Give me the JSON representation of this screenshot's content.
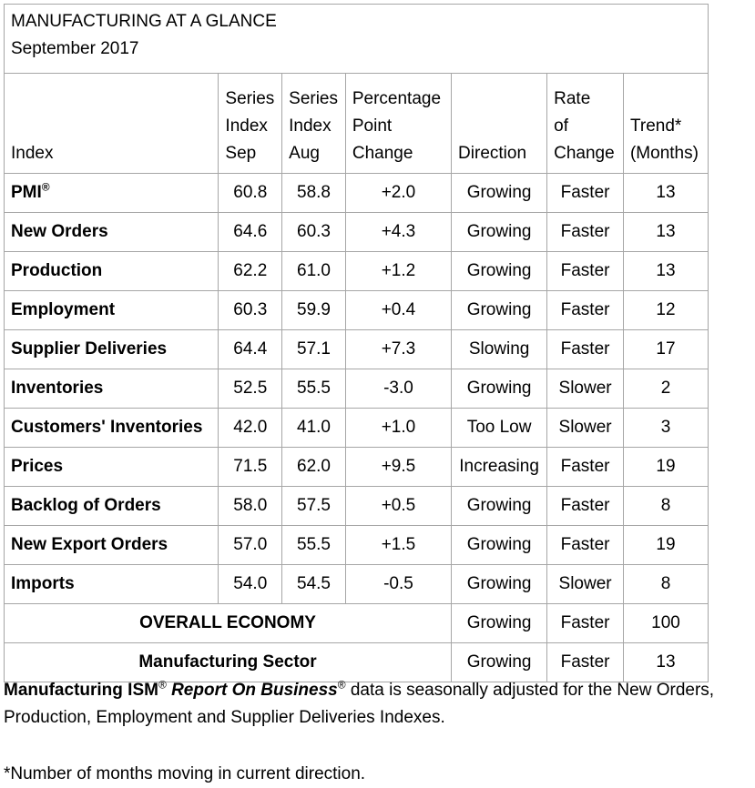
{
  "title": {
    "line1": "MANUFACTURING AT A GLANCE",
    "line2": "September 2017"
  },
  "headers": {
    "index": [
      "",
      "",
      "Index"
    ],
    "sep": [
      "Series",
      "Index",
      "Sep"
    ],
    "aug": [
      "Series",
      "Index",
      "Aug"
    ],
    "pct": [
      "Percentage",
      "Point",
      "Change"
    ],
    "direction": [
      "",
      "",
      "Direction"
    ],
    "rate": [
      "Rate",
      "of",
      "Change"
    ],
    "trend": [
      "",
      "Trend*",
      "(Months)"
    ]
  },
  "rows": [
    {
      "index": "PMI",
      "sup": "®",
      "sep": "60.8",
      "aug": "58.8",
      "pct": "+2.0",
      "direction": "Growing",
      "rate": "Faster",
      "trend": "13"
    },
    {
      "index": "New Orders",
      "sup": "",
      "sep": "64.6",
      "aug": "60.3",
      "pct": "+4.3",
      "direction": "Growing",
      "rate": "Faster",
      "trend": "13"
    },
    {
      "index": "Production",
      "sup": "",
      "sep": "62.2",
      "aug": "61.0",
      "pct": "+1.2",
      "direction": "Growing",
      "rate": "Faster",
      "trend": "13"
    },
    {
      "index": "Employment",
      "sup": "",
      "sep": "60.3",
      "aug": "59.9",
      "pct": "+0.4",
      "direction": "Growing",
      "rate": "Faster",
      "trend": "12"
    },
    {
      "index": "Supplier Deliveries",
      "sup": "",
      "sep": "64.4",
      "aug": "57.1",
      "pct": "+7.3",
      "direction": "Slowing",
      "rate": "Faster",
      "trend": "17"
    },
    {
      "index": "Inventories",
      "sup": "",
      "sep": "52.5",
      "aug": "55.5",
      "pct": "-3.0",
      "direction": "Growing",
      "rate": "Slower",
      "trend": "2"
    },
    {
      "index": "Customers' Inventories",
      "sup": "",
      "sep": "42.0",
      "aug": "41.0",
      "pct": "+1.0",
      "direction": "Too Low",
      "rate": "Slower",
      "trend": "3"
    },
    {
      "index": "Prices",
      "sup": "",
      "sep": "71.5",
      "aug": "62.0",
      "pct": "+9.5",
      "direction": "Increasing",
      "rate": "Faster",
      "trend": "19"
    },
    {
      "index": "Backlog of Orders",
      "sup": "",
      "sep": "58.0",
      "aug": "57.5",
      "pct": "+0.5",
      "direction": "Growing",
      "rate": "Faster",
      "trend": "8"
    },
    {
      "index": "New Export Orders",
      "sup": "",
      "sep": "57.0",
      "aug": "55.5",
      "pct": "+1.5",
      "direction": "Growing",
      "rate": "Faster",
      "trend": "19"
    },
    {
      "index": "Imports",
      "sup": "",
      "sep": "54.0",
      "aug": "54.5",
      "pct": "-0.5",
      "direction": "Growing",
      "rate": "Slower",
      "trend": "8"
    }
  ],
  "summary_rows": [
    {
      "label": "OVERALL ECONOMY",
      "direction": "Growing",
      "rate": "Faster",
      "trend": "100"
    },
    {
      "label": "Manufacturing Sector",
      "direction": "Growing",
      "rate": "Faster",
      "trend": "13"
    }
  ],
  "note": {
    "part1": "Manufacturing ISM",
    "sup1": "®",
    "space": " ",
    "part2": "Report On Business",
    "sup2": "®",
    "part3": " data is seasonally adjusted for the New Orders, Production, Employment and Supplier Deliveries Indexes."
  },
  "footnote": "*Number of months moving in current direction."
}
